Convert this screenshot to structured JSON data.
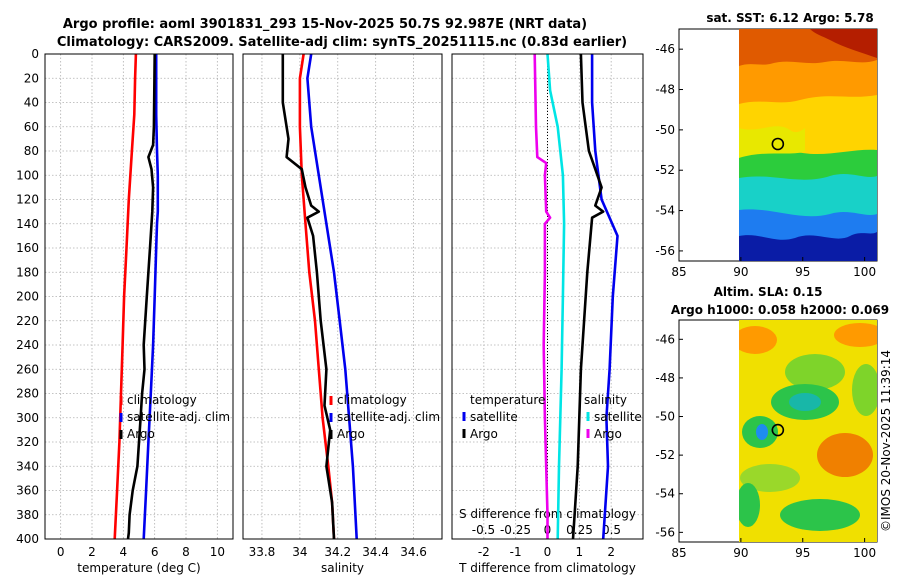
{
  "header": {
    "title_line1": "Argo profile: aoml 3901831_293 15-Nov-2025 50.7S 92.987E (NRT data)",
    "title_line2": "Climatology: CARS2009. Satellite-adj clim: synTS_20251115.nc (0.83d earlier)"
  },
  "colors": {
    "climatology": "#ff0000",
    "satellite": "#0000ee",
    "argo": "#000000",
    "sat_salinity": "#00e5e5",
    "argo_salinity": "#ee00ee"
  },
  "watermark": "©IMOS 20-Nov-2025 11:39:14",
  "chart_data": [
    {
      "id": "temperature",
      "type": "line",
      "xlabel": "temperature (deg C)",
      "ylabel": "",
      "xlim": [
        -1,
        11
      ],
      "ylim": [
        400,
        0
      ],
      "xticks": [
        0,
        2,
        4,
        6,
        8,
        10
      ],
      "yticks": [
        0,
        20,
        40,
        60,
        80,
        100,
        120,
        140,
        160,
        180,
        200,
        220,
        240,
        260,
        280,
        300,
        320,
        340,
        360,
        380,
        400
      ],
      "grid": true,
      "legend": {
        "placement": "lower-center",
        "entries": [
          "climatology",
          "satellite-adj. clim",
          "Argo"
        ]
      },
      "series": [
        {
          "name": "climatology",
          "color": "#ff0000",
          "depth": [
            0,
            20,
            50,
            80,
            120,
            160,
            200,
            240,
            280,
            320,
            360,
            400
          ],
          "values": [
            4.8,
            4.75,
            4.7,
            4.55,
            4.35,
            4.2,
            4.05,
            3.95,
            3.85,
            3.75,
            3.6,
            3.45
          ]
        },
        {
          "name": "satellite-adj. clim",
          "color": "#0000ee",
          "depth": [
            0,
            50,
            80,
            100,
            130,
            140,
            160,
            200,
            240,
            280,
            320,
            360,
            400
          ],
          "values": [
            6.1,
            6.1,
            6.15,
            6.2,
            6.2,
            6.15,
            6.1,
            6.0,
            5.9,
            5.75,
            5.6,
            5.45,
            5.3
          ]
        },
        {
          "name": "Argo",
          "color": "#000000",
          "depth": [
            0,
            60,
            75,
            85,
            95,
            110,
            130,
            160,
            200,
            240,
            260,
            280,
            300,
            320,
            340,
            360,
            380,
            395,
            400
          ],
          "values": [
            6.0,
            5.95,
            5.9,
            5.6,
            5.8,
            5.9,
            5.85,
            5.7,
            5.5,
            5.3,
            5.35,
            5.2,
            5.1,
            5.0,
            4.9,
            4.6,
            4.4,
            4.35,
            4.3
          ]
        }
      ]
    },
    {
      "id": "salinity",
      "type": "line",
      "xlabel": "salinity",
      "ylabel": "",
      "xlim": [
        33.7,
        34.75
      ],
      "ylim": [
        400,
        0
      ],
      "xticks": [
        33.8,
        34,
        34.2,
        34.4,
        34.6
      ],
      "xticklabels": [
        "33.8",
        "34",
        "34.2",
        "34.4",
        "34.6"
      ],
      "grid": true,
      "legend": {
        "placement": "lower-center",
        "entries": [
          "climatology",
          "satellite-adj. clim",
          "Argo"
        ]
      },
      "series": [
        {
          "name": "climatology",
          "color": "#ff0000",
          "depth": [
            0,
            20,
            60,
            100,
            140,
            180,
            220,
            260,
            300,
            340,
            370,
            400
          ],
          "values": [
            34.02,
            34.0,
            34.0,
            34.01,
            34.03,
            34.05,
            34.08,
            34.1,
            34.12,
            34.15,
            34.17,
            34.18
          ]
        },
        {
          "name": "satellite-adj. clim",
          "color": "#0000ee",
          "depth": [
            0,
            20,
            60,
            100,
            140,
            180,
            220,
            260,
            300,
            340,
            370,
            400
          ],
          "values": [
            34.06,
            34.04,
            34.06,
            34.1,
            34.14,
            34.18,
            34.21,
            34.24,
            34.26,
            34.28,
            34.29,
            34.3
          ]
        },
        {
          "name": "Argo",
          "color": "#000000",
          "depth": [
            0,
            40,
            70,
            85,
            95,
            110,
            125,
            130,
            135,
            150,
            180,
            220,
            260,
            290,
            310,
            340,
            370,
            400
          ],
          "values": [
            33.91,
            33.91,
            33.94,
            33.93,
            34.01,
            34.03,
            34.06,
            34.1,
            34.04,
            34.07,
            34.09,
            34.11,
            34.14,
            34.13,
            34.16,
            34.14,
            34.17,
            34.18
          ]
        }
      ]
    },
    {
      "id": "difference",
      "type": "line",
      "xlabel": "T difference from climatology",
      "top_axis_label": "S difference from climatology",
      "xlim": [
        -3,
        3
      ],
      "ylim": [
        400,
        0
      ],
      "xticks": [
        -2,
        -1,
        0,
        1,
        2
      ],
      "top_ticks": [
        -0.5,
        -0.25,
        0,
        0.25,
        0.5
      ],
      "top_ticklabels": [
        "-0.5",
        "-0.25",
        "0",
        "0.25",
        "0.5"
      ],
      "grid": true,
      "legend": {
        "placement": "lower-center",
        "temperature_title": "temperature",
        "salinity_title": "salinity",
        "entries": [
          "satellite",
          "Argo",
          "satellite",
          "Argo"
        ]
      },
      "series": [
        {
          "name": "temperature satellite",
          "color": "#0000ee",
          "depth": [
            0,
            40,
            80,
            120,
            150,
            200,
            260,
            300,
            340,
            380,
            400
          ],
          "values": [
            1.4,
            1.4,
            1.5,
            1.7,
            2.2,
            2.05,
            1.95,
            1.85,
            1.9,
            1.8,
            1.75
          ]
        },
        {
          "name": "temperature Argo",
          "color": "#000000",
          "depth": [
            0,
            40,
            60,
            80,
            95,
            110,
            125,
            130,
            135,
            150,
            180,
            220,
            260,
            300,
            340,
            380,
            400
          ],
          "values": [
            1.05,
            1.1,
            1.2,
            1.3,
            1.5,
            1.7,
            1.5,
            1.75,
            1.4,
            1.35,
            1.25,
            1.15,
            1.05,
            1.0,
            0.95,
            0.85,
            0.8
          ]
        },
        {
          "name": "salinity satellite",
          "color": "#00e5e5",
          "depth": [
            0,
            30,
            60,
            100,
            140,
            200,
            260,
            300,
            340,
            400
          ],
          "values": [
            0.0,
            0.02,
            0.08,
            0.12,
            0.13,
            0.12,
            0.11,
            0.1,
            0.09,
            0.08
          ]
        },
        {
          "name": "salinity Argo",
          "color": "#ee00ee",
          "depth": [
            0,
            60,
            85,
            90,
            100,
            130,
            135,
            140,
            180,
            240,
            300,
            340,
            380,
            400
          ],
          "values": [
            -0.1,
            -0.09,
            -0.08,
            -0.01,
            -0.02,
            -0.01,
            0.02,
            -0.02,
            -0.02,
            -0.03,
            -0.02,
            -0.01,
            0.0,
            0.0
          ]
        }
      ]
    },
    {
      "id": "sst-map",
      "type": "heatmap",
      "title": "sat. SST: 6.12 Argo: 5.78",
      "xlim": [
        85,
        101
      ],
      "ylim": [
        -56.5,
        -45
      ],
      "xticks": [
        85,
        90,
        95,
        100
      ],
      "yticks": [
        -46,
        -48,
        -50,
        -52,
        -54,
        -56
      ],
      "float_position": [
        92.987,
        -50.7
      ],
      "data_extent_lon": [
        90,
        101
      ]
    },
    {
      "id": "sla-map",
      "type": "heatmap",
      "title_line1": "Altim. SLA: 0.15",
      "title_line2": "Argo h1000: 0.058 h2000: 0.069",
      "xlim": [
        85,
        101
      ],
      "ylim": [
        -56.5,
        -45
      ],
      "xticks": [
        85,
        90,
        95,
        100
      ],
      "yticks": [
        -46,
        -48,
        -50,
        -52,
        -54,
        -56
      ],
      "float_position": [
        92.987,
        -50.7
      ],
      "data_extent_lon": [
        90,
        101
      ]
    }
  ]
}
